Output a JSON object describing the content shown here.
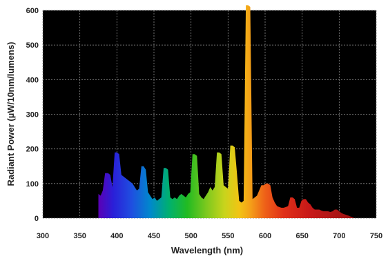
{
  "chart_data": {
    "type": "area",
    "title": "",
    "xlabel": "Wavelength (nm)",
    "ylabel": "Radiant Power (µW/10nm/lumens)",
    "xlim": [
      300,
      750
    ],
    "ylim": [
      0,
      600
    ],
    "x_ticks": [
      300,
      350,
      400,
      450,
      500,
      550,
      600,
      650,
      700,
      750
    ],
    "y_ticks": [
      0,
      100,
      200,
      300,
      400,
      500,
      600
    ],
    "x_tick_labels": [
      "300",
      "350",
      "400",
      "450",
      "500",
      "550",
      "600",
      "650",
      "700",
      "750"
    ],
    "y_tick_labels": [
      "0",
      "100",
      "200",
      "300",
      "400",
      "500",
      "600"
    ],
    "grid": true,
    "background_color": "#000000",
    "grid_color": "#8a8a8a",
    "x": [
      375,
      378,
      381,
      384,
      388,
      391,
      394,
      397,
      400,
      403,
      406,
      409,
      412,
      415,
      418,
      421,
      424,
      427,
      430,
      433,
      436,
      439,
      442,
      445,
      448,
      451,
      454,
      457,
      460,
      463,
      466,
      469,
      472,
      475,
      478,
      481,
      484,
      487,
      490,
      493,
      496,
      499,
      502,
      505,
      508,
      511,
      514,
      517,
      520,
      523,
      526,
      529,
      532,
      535,
      538,
      541,
      544,
      547,
      550,
      553,
      556,
      559,
      562,
      565,
      568,
      571,
      574,
      577,
      580,
      583,
      586,
      589,
      592,
      595,
      598,
      601,
      604,
      607,
      610,
      613,
      616,
      619,
      622,
      625,
      628,
      631,
      634,
      637,
      640,
      643,
      646,
      649,
      652,
      655,
      658,
      661,
      664,
      667,
      670,
      673,
      676,
      679,
      682,
      685,
      688,
      691,
      694,
      697,
      700,
      703,
      706,
      709,
      712,
      715,
      718,
      721,
      724,
      727,
      730,
      733,
      736,
      739,
      742,
      745,
      748
    ],
    "y": [
      70,
      65,
      80,
      130,
      130,
      125,
      90,
      190,
      190,
      185,
      125,
      120,
      115,
      110,
      105,
      100,
      90,
      80,
      85,
      150,
      150,
      140,
      75,
      65,
      55,
      60,
      50,
      55,
      60,
      145,
      145,
      140,
      60,
      55,
      60,
      55,
      65,
      70,
      65,
      60,
      70,
      75,
      185,
      185,
      180,
      70,
      60,
      55,
      65,
      75,
      90,
      80,
      90,
      190,
      190,
      185,
      95,
      90,
      85,
      210,
      210,
      205,
      130,
      50,
      45,
      50,
      615,
      615,
      610,
      55,
      60,
      65,
      80,
      95,
      95,
      100,
      100,
      95,
      60,
      45,
      35,
      32,
      30,
      30,
      32,
      35,
      60,
      60,
      55,
      30,
      30,
      50,
      55,
      55,
      45,
      40,
      30,
      25,
      25,
      25,
      22,
      20,
      20,
      20,
      18,
      20,
      25,
      25,
      20,
      15,
      12,
      10,
      8,
      5,
      3,
      0,
      0,
      0,
      0,
      0,
      0,
      0,
      0,
      0,
      0
    ]
  }
}
